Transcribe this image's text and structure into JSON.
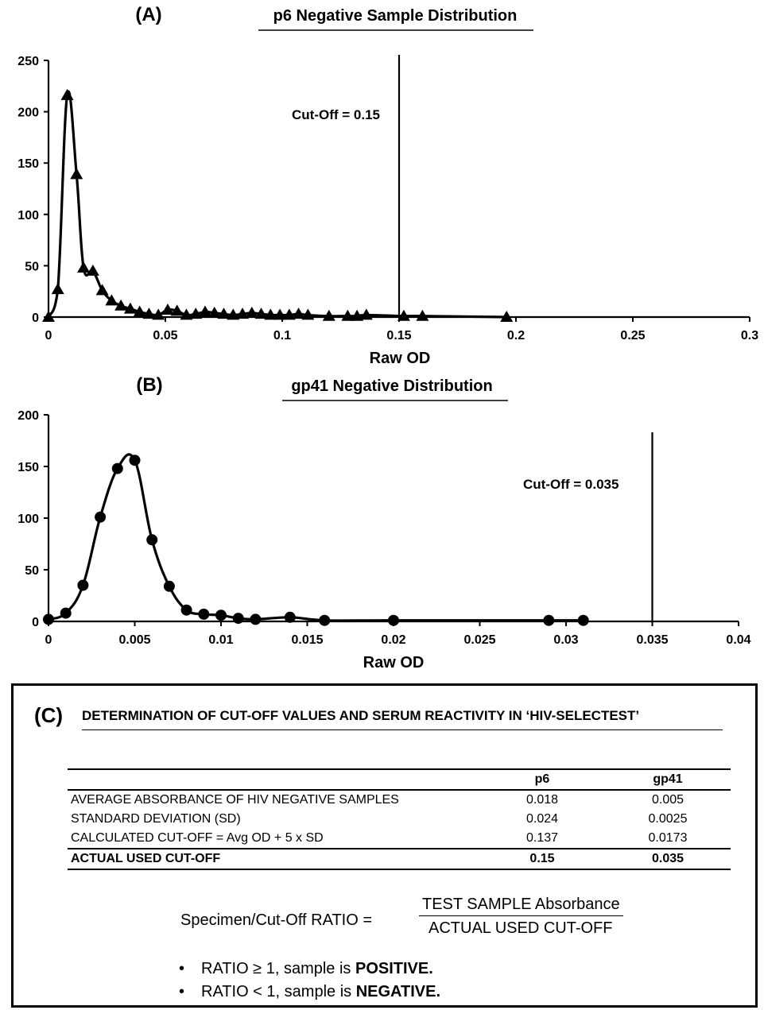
{
  "chart_data": [
    {
      "type": "line",
      "panel_label": "(A)",
      "title": "p6 Negative Sample Distribution",
      "xlabel": "Raw OD",
      "ylabel": "",
      "xlim": [
        0,
        0.3
      ],
      "ylim": [
        0,
        250
      ],
      "xticks": [
        0,
        0.05,
        0.1,
        0.15,
        0.2,
        0.25,
        0.3
      ],
      "yticks": [
        0,
        50,
        100,
        150,
        200,
        250
      ],
      "grid": false,
      "marker": "triangle",
      "cutoff": {
        "x": 0.15,
        "label": "Cut-Off = 0.15"
      },
      "series": [
        {
          "x": [
            0,
            0.004,
            0.008,
            0.012,
            0.015,
            0.019,
            0.023,
            0.027,
            0.031,
            0.035,
            0.039,
            0.043,
            0.047,
            0.051,
            0.055,
            0.059,
            0.063,
            0.067,
            0.071,
            0.075,
            0.079,
            0.083,
            0.087,
            0.091,
            0.095,
            0.099,
            0.103,
            0.107,
            0.111,
            0.12,
            0.128,
            0.132,
            0.136,
            0.152,
            0.16,
            0.196
          ],
          "y": [
            0,
            27,
            216,
            139,
            48,
            45,
            26,
            16,
            11,
            8,
            5,
            3,
            2,
            7,
            6,
            2,
            3,
            5,
            4,
            3,
            2,
            3,
            4,
            3,
            2,
            2,
            2,
            3,
            2,
            1,
            1,
            1,
            2,
            1,
            1,
            0
          ]
        }
      ]
    },
    {
      "type": "line",
      "panel_label": "(B)",
      "title": "gp41 Negative Distribution",
      "xlabel": "Raw OD",
      "ylabel": "",
      "xlim": [
        0,
        0.04
      ],
      "ylim": [
        0,
        200
      ],
      "xticks": [
        0,
        0.005,
        0.01,
        0.015,
        0.02,
        0.025,
        0.03,
        0.035,
        0.04
      ],
      "yticks": [
        0,
        50,
        100,
        150,
        200
      ],
      "grid": false,
      "marker": "circle",
      "cutoff": {
        "x": 0.035,
        "label": "Cut-Off = 0.035"
      },
      "series": [
        {
          "x": [
            0,
            0.001,
            0.002,
            0.003,
            0.004,
            0.005,
            0.006,
            0.007,
            0.008,
            0.009,
            0.01,
            0.011,
            0.012,
            0.014,
            0.016,
            0.02,
            0.029,
            0.031
          ],
          "y": [
            2,
            8,
            35,
            101,
            148,
            156,
            79,
            34,
            11,
            7,
            6,
            3,
            2,
            4,
            1,
            1,
            1,
            1
          ]
        }
      ]
    }
  ],
  "panel_c": {
    "label": "(C)",
    "title": "DETERMINATION OF CUT-OFF VALUES AND SERUM REACTIVITY IN ‘HIV-SELECTEST’",
    "table": {
      "headers": [
        "",
        "p6",
        "gp41"
      ],
      "rows": [
        [
          "AVERAGE ABSORBANCE OF HIV NEGATIVE SAMPLES",
          "0.018",
          "0.005"
        ],
        [
          "STANDARD DEVIATION (SD)",
          "0.024",
          "0.0025"
        ],
        [
          "CALCULATED CUT-OFF = Avg OD + 5 x SD",
          "0.137",
          "0.0173"
        ]
      ],
      "actual_row": [
        "ACTUAL USED CUT-OFF",
        "0.15",
        "0.035"
      ]
    },
    "formula": {
      "left": "Specimen/Cut-Off RATIO =",
      "numerator": "TEST SAMPLE Absorbance",
      "denominator": "ACTUAL USED CUT-OFF"
    },
    "rules": [
      {
        "bullet": "•",
        "text": "RATIO ≥ 1,  sample is ",
        "bold": "POSITIVE."
      },
      {
        "bullet": "•",
        "text": "RATIO < 1,  sample is ",
        "bold": "NEGATIVE."
      }
    ]
  }
}
